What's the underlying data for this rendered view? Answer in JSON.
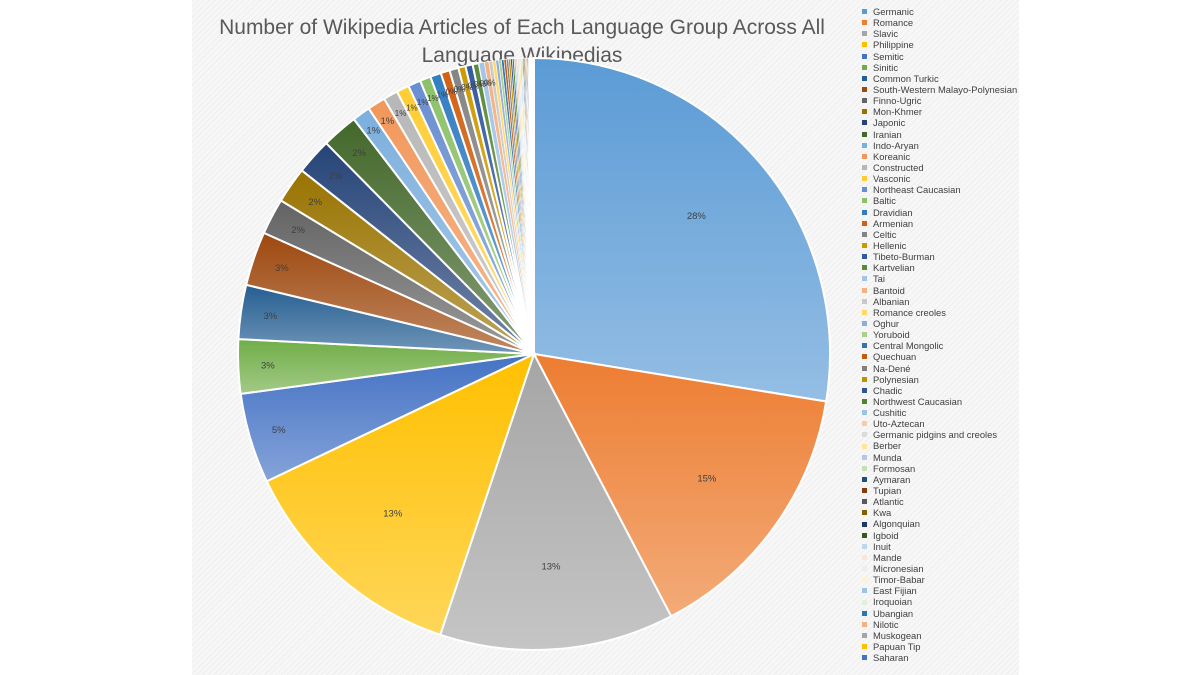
{
  "chart_data": {
    "type": "pie",
    "title": "Number of Wikipedia Articles of Each Language Group  Across All Language Wikipedias",
    "legend_position": "right",
    "series": [
      {
        "name": "Germanic",
        "value": 28,
        "color": "#5b9bd5",
        "label": "28%"
      },
      {
        "name": "Romance",
        "value": 15,
        "color": "#ed7d31",
        "label": "15%"
      },
      {
        "name": "Slavic",
        "value": 13,
        "color": "#a5a5a5",
        "label": "13%"
      },
      {
        "name": "Philippine",
        "value": 13,
        "color": "#ffc000",
        "label": "13%"
      },
      {
        "name": "Semitic",
        "value": 5,
        "color": "#4472c4",
        "label": "5%"
      },
      {
        "name": "Sinitic",
        "value": 3,
        "color": "#70ad47",
        "label": "3%"
      },
      {
        "name": "Common Turkic",
        "value": 3,
        "color": "#255e91",
        "label": "3%"
      },
      {
        "name": "South-Western Malayo-Polynesian",
        "value": 3,
        "color": "#9e480e",
        "label": "3%"
      },
      {
        "name": "Finno-Ugric",
        "value": 2,
        "color": "#636363",
        "label": "2%"
      },
      {
        "name": "Mon-Khmer",
        "value": 2,
        "color": "#997300",
        "label": "2%"
      },
      {
        "name": "Japonic",
        "value": 2,
        "color": "#264478",
        "label": "2%"
      },
      {
        "name": "Iranian",
        "value": 2,
        "color": "#43682b",
        "label": "2%"
      },
      {
        "name": "Indo-Aryan",
        "value": 1,
        "color": "#7cafdd",
        "label": "1%"
      },
      {
        "name": "Koreanic",
        "value": 1,
        "color": "#f1975a",
        "label": "1%"
      },
      {
        "name": "Constructed",
        "value": 0.8,
        "color": "#b7b7b7",
        "label": "1%"
      },
      {
        "name": "Vasconic",
        "value": 0.7,
        "color": "#ffcd33",
        "label": "1%"
      },
      {
        "name": "Northeast Caucasian",
        "value": 0.7,
        "color": "#698ed0",
        "label": "1%"
      },
      {
        "name": "Baltic",
        "value": 0.6,
        "color": "#8cc168",
        "label": "1%"
      },
      {
        "name": "Dravidian",
        "value": 0.6,
        "color": "#327dc2",
        "label": "1%"
      },
      {
        "name": "Armenian",
        "value": 0.5,
        "color": "#d26012",
        "label": "0%"
      },
      {
        "name": "Celtic",
        "value": 0.5,
        "color": "#848484",
        "label": "0%"
      },
      {
        "name": "Hellenic",
        "value": 0.4,
        "color": "#cc9a00",
        "label": "0%"
      },
      {
        "name": "Tibeto-Burman",
        "value": 0.4,
        "color": "#335aa1",
        "label": "0%"
      },
      {
        "name": "Kartvelian",
        "value": 0.35,
        "color": "#5a8a39",
        "label": "0%"
      },
      {
        "name": "Tai",
        "value": 0.3,
        "color": "#a3c4e8",
        "label": "0%"
      },
      {
        "name": "Bantoid",
        "value": 0.25,
        "color": "#f4b183",
        "label": "0%"
      },
      {
        "name": "Albanian",
        "value": 0.2,
        "color": "#c9c9c9",
        "label": ""
      },
      {
        "name": "Romance creoles",
        "value": 0.18,
        "color": "#ffd966",
        "label": ""
      },
      {
        "name": "Oghur",
        "value": 0.16,
        "color": "#8faadc",
        "label": ""
      },
      {
        "name": "Yoruboid",
        "value": 0.15,
        "color": "#a9d18e",
        "label": ""
      },
      {
        "name": "Central Mongolic",
        "value": 0.14,
        "color": "#2e75b6",
        "label": ""
      },
      {
        "name": "Quechuan",
        "value": 0.13,
        "color": "#c55a11",
        "label": ""
      },
      {
        "name": "Na-Dené",
        "value": 0.12,
        "color": "#7f7f7f",
        "label": ""
      },
      {
        "name": "Polynesian",
        "value": 0.11,
        "color": "#bf9000",
        "label": ""
      },
      {
        "name": "Chadic",
        "value": 0.1,
        "color": "#2f5597",
        "label": ""
      },
      {
        "name": "Northwest Caucasian",
        "value": 0.1,
        "color": "#548235",
        "label": ""
      },
      {
        "name": "Cushitic",
        "value": 0.09,
        "color": "#9dc3e6",
        "label": ""
      },
      {
        "name": "Uto-Aztecan",
        "value": 0.09,
        "color": "#f8cbad",
        "label": ""
      },
      {
        "name": "Germanic pidgins and creoles",
        "value": 0.08,
        "color": "#dbdbdb",
        "label": ""
      },
      {
        "name": "Berber",
        "value": 0.08,
        "color": "#ffe699",
        "label": ""
      },
      {
        "name": "Munda",
        "value": 0.07,
        "color": "#b4c7e7",
        "label": ""
      },
      {
        "name": "Formosan",
        "value": 0.07,
        "color": "#c5e0b4",
        "label": ""
      },
      {
        "name": "Aymaran",
        "value": 0.06,
        "color": "#1f4e79",
        "label": ""
      },
      {
        "name": "Tupian",
        "value": 0.06,
        "color": "#843c0c",
        "label": ""
      },
      {
        "name": "Atlantic",
        "value": 0.05,
        "color": "#595959",
        "label": ""
      },
      {
        "name": "Kwa",
        "value": 0.05,
        "color": "#806000",
        "label": ""
      },
      {
        "name": "Algonquian",
        "value": 0.05,
        "color": "#203864",
        "label": ""
      },
      {
        "name": "Igboid",
        "value": 0.04,
        "color": "#385723",
        "label": ""
      },
      {
        "name": "Inuit",
        "value": 0.04,
        "color": "#bdd7ee",
        "label": ""
      },
      {
        "name": "Mande",
        "value": 0.04,
        "color": "#fbe5d6",
        "label": ""
      },
      {
        "name": "Micronesian",
        "value": 0.03,
        "color": "#ededed",
        "label": ""
      },
      {
        "name": "Timor-Babar",
        "value": 0.03,
        "color": "#fff2cc",
        "label": ""
      },
      {
        "name": "East Fijian",
        "value": 0.03,
        "color": "#9dc3e6",
        "label": ""
      },
      {
        "name": "Iroquoian",
        "value": 0.03,
        "color": "#e2f0d9",
        "label": ""
      },
      {
        "name": "Ubangian",
        "value": 0.02,
        "color": "#2e75b6",
        "label": ""
      },
      {
        "name": "Nilotic",
        "value": 0.02,
        "color": "#f4b183",
        "label": ""
      },
      {
        "name": "Muskogean",
        "value": 0.02,
        "color": "#a5a5a5",
        "label": ""
      },
      {
        "name": "Papuan Tip",
        "value": 0.02,
        "color": "#ffc000",
        "label": ""
      },
      {
        "name": "Saharan",
        "value": 0.02,
        "color": "#4472c4",
        "label": ""
      }
    ]
  }
}
